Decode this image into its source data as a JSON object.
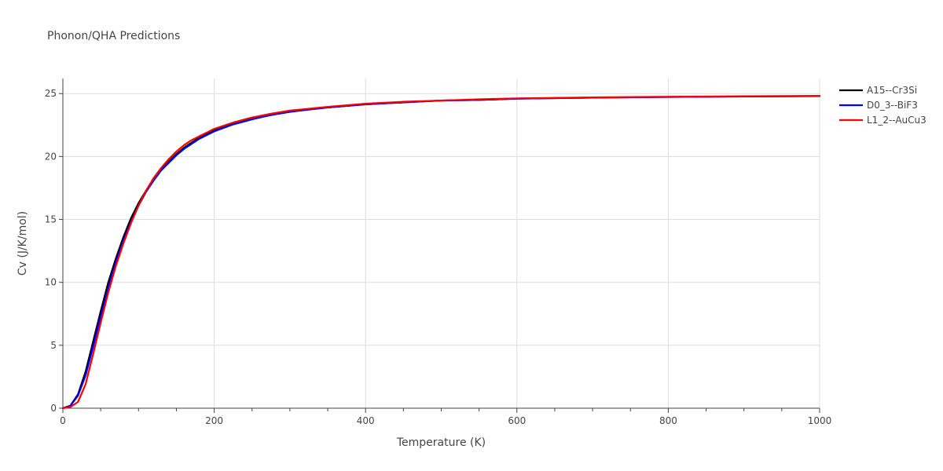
{
  "chart_data": {
    "type": "line",
    "title": "Phonon/QHA Predictions",
    "xlabel": "Temperature (K)",
    "ylabel": "Cv (J/K/mol)",
    "xlim": [
      0,
      1000
    ],
    "ylim": [
      0,
      26.2
    ],
    "x_ticks": [
      0,
      200,
      400,
      600,
      800,
      1000
    ],
    "x_minor_ticks": [
      50,
      100,
      150,
      250,
      300,
      350,
      450,
      500,
      550,
      650,
      700,
      750,
      850,
      900,
      950
    ],
    "y_ticks": [
      0,
      5,
      10,
      15,
      20,
      25
    ],
    "x_tick_labels": [
      "0",
      "200",
      "400",
      "600",
      "800",
      "1000"
    ],
    "y_tick_labels": [
      "0",
      "5",
      "10",
      "15",
      "20",
      "25"
    ],
    "grid": true,
    "legend_position": "top-right",
    "x": [
      0,
      10,
      20,
      30,
      40,
      50,
      60,
      70,
      80,
      90,
      100,
      110,
      120,
      130,
      140,
      150,
      160,
      170,
      180,
      190,
      200,
      225,
      250,
      275,
      300,
      350,
      400,
      450,
      500,
      550,
      600,
      700,
      800,
      900,
      1000
    ],
    "series": [
      {
        "name": "A15--Cr3Si",
        "color": "#000000",
        "values": [
          0.0,
          0.2,
          1.1,
          2.9,
          5.3,
          7.7,
          10.0,
          11.9,
          13.6,
          15.1,
          16.3,
          17.3,
          18.2,
          19.0,
          19.6,
          20.2,
          20.7,
          21.1,
          21.5,
          21.8,
          22.1,
          22.6,
          23.0,
          23.3,
          23.6,
          23.9,
          24.15,
          24.3,
          24.45,
          24.5,
          24.6,
          24.68,
          24.73,
          24.77,
          24.8
        ]
      },
      {
        "name": "D0_3--BiF3",
        "color": "#0000ff",
        "values": [
          0.0,
          0.2,
          1.0,
          2.6,
          4.9,
          7.3,
          9.6,
          11.6,
          13.3,
          14.8,
          16.1,
          17.2,
          18.1,
          18.9,
          19.5,
          20.1,
          20.6,
          21.0,
          21.4,
          21.7,
          22.0,
          22.55,
          22.95,
          23.3,
          23.55,
          23.9,
          24.15,
          24.3,
          24.45,
          24.5,
          24.6,
          24.68,
          24.73,
          24.77,
          24.8
        ]
      },
      {
        "name": "L1_2--AuCu3",
        "color": "#ff0000",
        "values": [
          0.0,
          0.1,
          0.5,
          1.9,
          4.3,
          6.8,
          9.2,
          11.3,
          13.1,
          14.7,
          16.1,
          17.3,
          18.3,
          19.1,
          19.8,
          20.4,
          20.9,
          21.3,
          21.6,
          21.9,
          22.2,
          22.7,
          23.1,
          23.4,
          23.65,
          23.95,
          24.2,
          24.35,
          24.45,
          24.55,
          24.62,
          24.7,
          24.75,
          24.79,
          24.82
        ]
      }
    ]
  }
}
